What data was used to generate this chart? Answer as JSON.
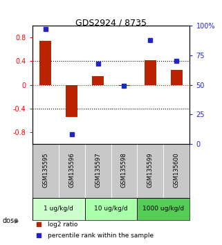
{
  "title": "GDS2924 / 8735",
  "samples": [
    "GSM135595",
    "GSM135596",
    "GSM135597",
    "GSM135598",
    "GSM135599",
    "GSM135600"
  ],
  "log2_ratio": [
    0.75,
    -0.55,
    0.15,
    -0.02,
    0.42,
    0.25
  ],
  "percentile_rank": [
    97,
    8,
    68,
    49,
    88,
    70
  ],
  "bar_color": "#bb2200",
  "dot_color": "#2222cc",
  "ylim_left": [
    -1.0,
    1.0
  ],
  "ylim_right": [
    0,
    100
  ],
  "yticks_left": [
    -0.8,
    -0.4,
    0.0,
    0.4,
    0.8
  ],
  "yticks_right": [
    0,
    25,
    50,
    75,
    100
  ],
  "ytick_labels_left": [
    "-0.8",
    "-0.4",
    "0",
    "0.4",
    "0.8"
  ],
  "ytick_labels_right": [
    "0",
    "25",
    "50",
    "75",
    "100%"
  ],
  "dose_groups": [
    {
      "label": "1 ug/kg/d",
      "cols": [
        0,
        1
      ],
      "color": "#ccffcc"
    },
    {
      "label": "10 ug/kg/d",
      "cols": [
        2,
        3
      ],
      "color": "#aaffaa"
    },
    {
      "label": "1000 ug/kg/d",
      "cols": [
        4,
        5
      ],
      "color": "#55cc55"
    }
  ],
  "legend_red": "log2 ratio",
  "legend_blue": "percentile rank within the sample",
  "background_plot": "#ffffff",
  "background_label": "#c8c8c8"
}
